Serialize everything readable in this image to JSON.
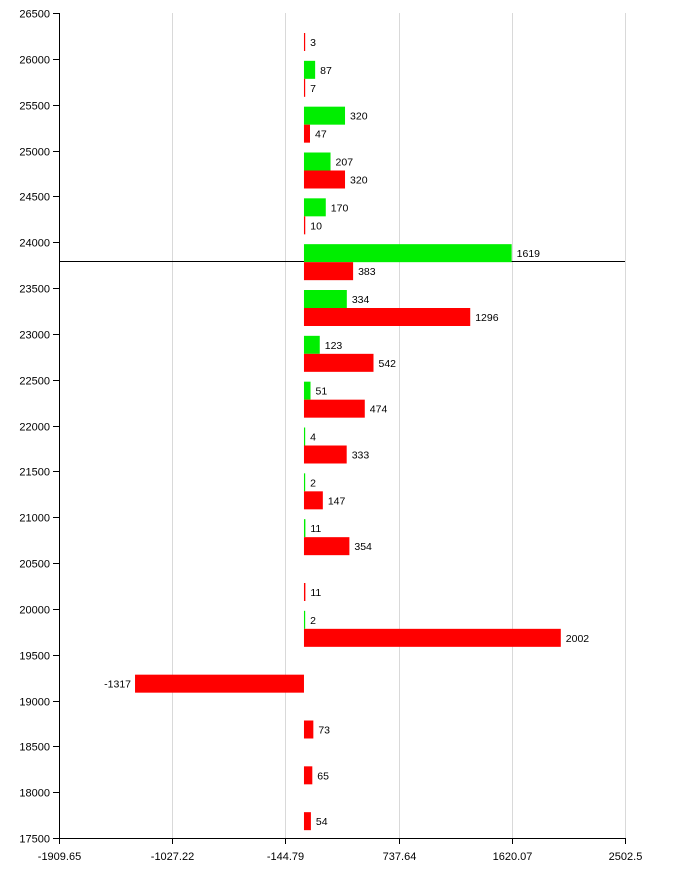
{
  "chart_data": {
    "type": "bar",
    "orientation": "horizontal",
    "title": "",
    "xlabel": "",
    "ylabel": "",
    "xlim": [
      -1909.65,
      2502.5
    ],
    "ylim": [
      17500,
      26500
    ],
    "x_ticks": [
      "-1909.65",
      "-1027.22",
      "-144.79",
      "737.64",
      "1620.07",
      "2502.5"
    ],
    "y_ticks": [
      "26500",
      "26000",
      "25500",
      "25000",
      "24500",
      "24000",
      "23500",
      "23000",
      "22500",
      "22000",
      "21500",
      "21000",
      "20500",
      "20000",
      "19500",
      "19000",
      "18500",
      "18000",
      "17500"
    ],
    "grid": "vertical",
    "reference_line_y": 23800,
    "categories": [
      26500,
      26000,
      25500,
      25000,
      24500,
      24000,
      23500,
      23000,
      22500,
      22000,
      21500,
      21000,
      20500,
      20000,
      19500,
      19000,
      18500,
      18000
    ],
    "series": [
      {
        "color": "#00ee00",
        "values": [
          null,
          87,
          320,
          207,
          170,
          1619,
          334,
          123,
          51,
          4,
          2,
          11,
          null,
          2,
          null,
          null,
          null,
          null
        ]
      },
      {
        "color": "#ff0000",
        "values": [
          3,
          7,
          47,
          320,
          10,
          383,
          1296,
          542,
          474,
          333,
          147,
          354,
          11,
          2002,
          -1317,
          73,
          65,
          54
        ]
      }
    ],
    "colors": {
      "green": "#00ee00",
      "red": "#ff0000",
      "grid": "#d9d9d9",
      "axis": "#000000"
    }
  }
}
